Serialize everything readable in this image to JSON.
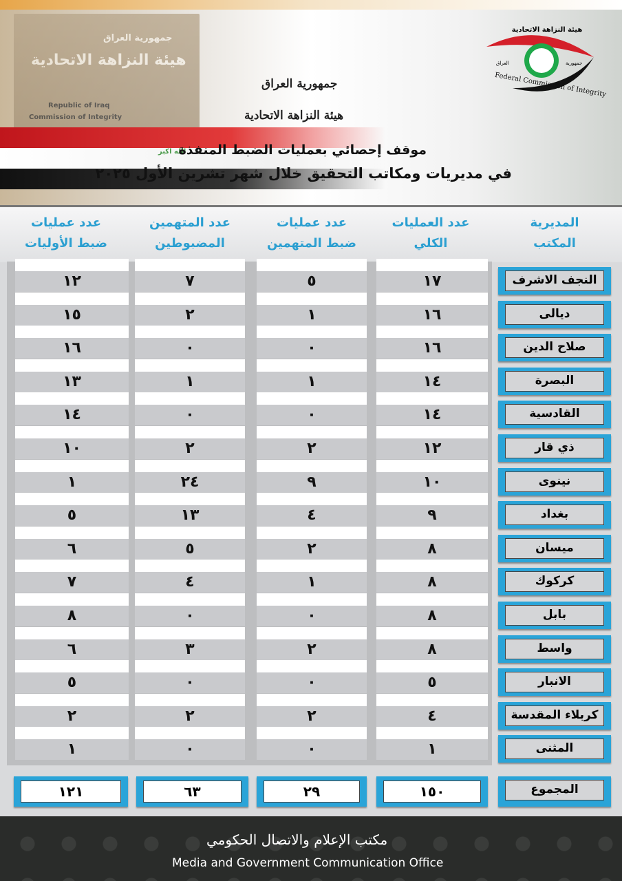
{
  "header": {
    "building_sign_ar1": "جمهورية العراق",
    "building_sign_ar2": "هيئة النزاهة الاتحادية",
    "building_sign_en1": "Republic of Iraq",
    "building_sign_en2": "Commission of Integrity",
    "flag_text": "الله اكبر",
    "calligraphy_line1": "جمهورية العراق",
    "calligraphy_line2": "هيئة النزاهة الاتحادية",
    "logo_text_ar": "هيئة النزاهة الاتحادية",
    "logo_text_left": "العراق",
    "logo_text_right": "جمهورية",
    "logo_text_en": "Federal Commission of Integrity",
    "title_line1": "موقف إحصائي بعمليات الضبط المنفذة",
    "title_line2": "في مديريات ومكاتب التحقيق خلال شهر تشرين الأول ٢٠٢٥"
  },
  "columns": [
    "المديرية\nالمكتب",
    "عدد العمليات\nالكلي",
    "عدد عمليات\nضبط المتهمين",
    "عدد المتهمين\nالمضبوطين",
    "عدد عمليات\nضبط الأوليات"
  ],
  "rows": [
    {
      "name": "النجف الاشرف",
      "values": [
        "١٧",
        "٥",
        "٧",
        "١٢"
      ]
    },
    {
      "name": "ديالى",
      "values": [
        "١٦",
        "١",
        "٢",
        "١٥"
      ]
    },
    {
      "name": "صلاح الدين",
      "values": [
        "١٦",
        "٠",
        "٠",
        "١٦"
      ]
    },
    {
      "name": "البصرة",
      "values": [
        "١٤",
        "١",
        "١",
        "١٣"
      ]
    },
    {
      "name": "القادسية",
      "values": [
        "١٤",
        "٠",
        "٠",
        "١٤"
      ]
    },
    {
      "name": "ذي قار",
      "values": [
        "١٢",
        "٢",
        "٢",
        "١٠"
      ]
    },
    {
      "name": "نينوى",
      "values": [
        "١٠",
        "٩",
        "٢٤",
        "١"
      ]
    },
    {
      "name": "بغداد",
      "values": [
        "٩",
        "٤",
        "١٣",
        "٥"
      ]
    },
    {
      "name": "ميسان",
      "values": [
        "٨",
        "٢",
        "٥",
        "٦"
      ]
    },
    {
      "name": "كركوك",
      "values": [
        "٨",
        "١",
        "٤",
        "٧"
      ]
    },
    {
      "name": "بابل",
      "values": [
        "٨",
        "٠",
        "٠",
        "٨"
      ]
    },
    {
      "name": "واسط",
      "values": [
        "٨",
        "٢",
        "٣",
        "٦"
      ]
    },
    {
      "name": "الانبار",
      "values": [
        "٥",
        "٠",
        "٠",
        "٥"
      ]
    },
    {
      "name": "كربلاء المقدسة",
      "values": [
        "٤",
        "٢",
        "٢",
        "٢"
      ]
    },
    {
      "name": "المثنى",
      "values": [
        "١",
        "٠",
        "٠",
        "١"
      ]
    }
  ],
  "totals": {
    "label": "المجموع",
    "values": [
      "١٥٠",
      "٢٩",
      "٦٣",
      "١٢١"
    ]
  },
  "footer": {
    "office_ar": "مكتب الإعلام والاتصال الحكومي",
    "office_en": "Media and Government Communication Office"
  },
  "colors": {
    "accent": "#2aa4d8",
    "band": "#c9cacd",
    "footer": "#2a2c2a"
  }
}
